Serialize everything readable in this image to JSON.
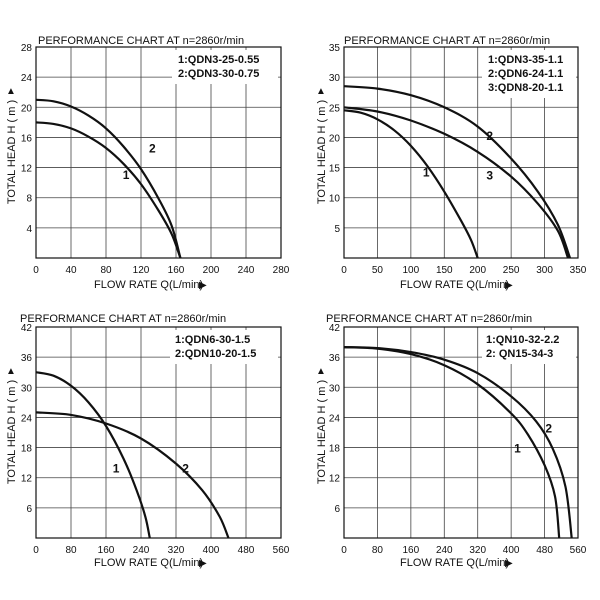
{
  "colors": {
    "background": "#ffffff",
    "ink": "#111111",
    "grid": "#444444"
  },
  "chart_data": [
    {
      "type": "line",
      "title": "PERFORMANCE CHART AT n=2860r/min",
      "xlabel": "FLOW RATE Q(L/min)",
      "ylabel": "TOTAL HEAD H ( m )",
      "xlim": [
        0,
        280
      ],
      "ylim": [
        0,
        28
      ],
      "xticks": [
        "0",
        "40",
        "80",
        "120",
        "160",
        "200",
        "240",
        "280"
      ],
      "yticks": [
        "4",
        "8",
        "12",
        "16",
        "20",
        "24",
        "28"
      ],
      "legend": [
        "1:QDN3-25-0.55",
        "2:QDN3-30-0.75"
      ],
      "series": [
        {
          "name": "1",
          "x": [
            0,
            20,
            40,
            60,
            80,
            100,
            120,
            140,
            155,
            165
          ],
          "y": [
            18,
            17.8,
            17.2,
            16.1,
            14.6,
            12.5,
            9.8,
            6.3,
            3.2,
            0
          ]
        },
        {
          "name": "2",
          "x": [
            0,
            20,
            40,
            60,
            80,
            100,
            120,
            140,
            155,
            165
          ],
          "y": [
            21,
            20.8,
            20.1,
            18.9,
            17.2,
            14.8,
            11.8,
            7.9,
            4.3,
            0
          ]
        }
      ],
      "annotations": [
        {
          "text": "1",
          "x": 103,
          "y": 10.5
        },
        {
          "text": "2",
          "x": 133,
          "y": 14.0
        }
      ]
    },
    {
      "type": "line",
      "title": "PERFORMANCE CHART AT n=2860r/min",
      "xlabel": "FLOW RATE Q(L/min)",
      "ylabel": "TOTAL HEAD H ( m )",
      "xlim": [
        0,
        350
      ],
      "ylim": [
        0,
        35
      ],
      "xticks": [
        "0",
        "50",
        "100",
        "150",
        "200",
        "250",
        "300",
        "350"
      ],
      "yticks": [
        "5",
        "10",
        "15",
        "20",
        "25",
        "30",
        "35"
      ],
      "legend": [
        "1:QDN3-35-1.1",
        "2:QDN6-24-1.1",
        "3:QDN8-20-1.1"
      ],
      "series": [
        {
          "name": "1",
          "x": [
            0,
            25,
            50,
            75,
            100,
            125,
            150,
            175,
            190,
            200
          ],
          "y": [
            24.5,
            24.1,
            23,
            21.2,
            18.6,
            15.2,
            11,
            6.2,
            3,
            0
          ]
        },
        {
          "name": "2",
          "x": [
            0,
            50,
            100,
            150,
            200,
            250,
            290,
            320,
            338
          ],
          "y": [
            28.5,
            28.1,
            27,
            25,
            21.8,
            16.5,
            11,
            5.5,
            0
          ]
        },
        {
          "name": "3",
          "x": [
            0,
            50,
            100,
            150,
            200,
            250,
            290,
            320,
            335
          ],
          "y": [
            25,
            24.3,
            22.8,
            20.6,
            17.6,
            13.5,
            9,
            4.5,
            0
          ]
        }
      ],
      "annotations": [
        {
          "text": "1",
          "x": 123,
          "y": 13.5
        },
        {
          "text": "2",
          "x": 218,
          "y": 19.6
        },
        {
          "text": "3",
          "x": 218,
          "y": 13.0
        }
      ]
    },
    {
      "type": "line",
      "title": "PERFORMANCE CHART AT n=2860r/min",
      "xlabel": "FLOW RATE Q(L/min)",
      "ylabel": "TOTAL HEAD H ( m )",
      "xlim": [
        0,
        560
      ],
      "ylim": [
        0,
        42
      ],
      "xticks": [
        "0",
        "80",
        "160",
        "240",
        "320",
        "400",
        "480",
        "560"
      ],
      "yticks": [
        "6",
        "12",
        "18",
        "24",
        "30",
        "36",
        "42"
      ],
      "legend": [
        "1:QDN6-30-1.5",
        "2:QDN10-20-1.5"
      ],
      "series": [
        {
          "name": "1",
          "x": [
            0,
            40,
            80,
            120,
            160,
            200,
            230,
            250,
            260
          ],
          "y": [
            33,
            32.3,
            30.3,
            27,
            22.3,
            15.8,
            9.5,
            4.2,
            0
          ]
        },
        {
          "name": "2",
          "x": [
            0,
            80,
            160,
            240,
            320,
            380,
            420,
            440
          ],
          "y": [
            25,
            24.5,
            22.8,
            19.8,
            14.8,
            9.5,
            4.2,
            0
          ]
        }
      ],
      "annotations": [
        {
          "text": "1",
          "x": 183,
          "y": 13.0
        },
        {
          "text": "2",
          "x": 342,
          "y": 13.0
        }
      ]
    },
    {
      "type": "line",
      "title": "PERFORMANCE CHART AT n=2860r/min",
      "xlabel": "FLOW RATE Q(L/min)",
      "ylabel": "TOTAL HEAD H ( m )",
      "xlim": [
        0,
        560
      ],
      "ylim": [
        0,
        42
      ],
      "xticks": [
        "0",
        "80",
        "160",
        "240",
        "320",
        "400",
        "480",
        "560"
      ],
      "yticks": [
        "6",
        "12",
        "18",
        "24",
        "30",
        "36",
        "42"
      ],
      "legend": [
        "1:QN10-32-2.2",
        "2: QN15-34-3"
      ],
      "series": [
        {
          "name": "1",
          "x": [
            0,
            80,
            160,
            240,
            320,
            400,
            440,
            480,
            505,
            515
          ],
          "y": [
            38,
            37.7,
            36.6,
            34.4,
            30.6,
            24.8,
            20.6,
            14.5,
            8.3,
            0
          ]
        },
        {
          "name": "2",
          "x": [
            0,
            80,
            160,
            240,
            320,
            400,
            460,
            500,
            530,
            545
          ],
          "y": [
            38,
            37.8,
            37,
            35.5,
            32.8,
            28.2,
            23.2,
            17.7,
            10.2,
            0
          ]
        }
      ],
      "annotations": [
        {
          "text": "1",
          "x": 415,
          "y": 17.0
        },
        {
          "text": "2",
          "x": 490,
          "y": 21.0
        }
      ]
    }
  ]
}
